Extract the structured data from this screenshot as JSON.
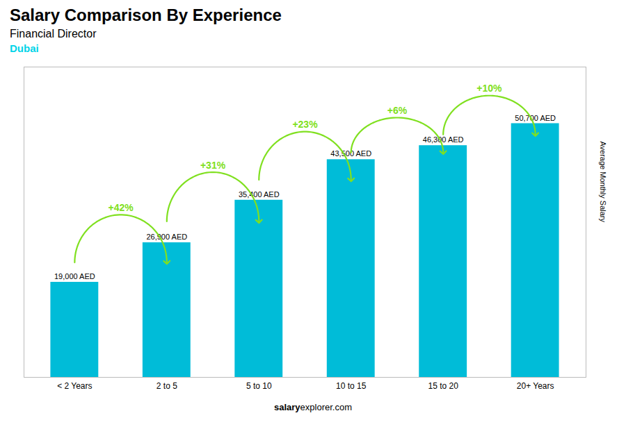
{
  "chart_data": {
    "type": "bar",
    "title": "Salary Comparison By Experience",
    "subtitle": "Financial Director",
    "ylabel": "Average Monthly Salary",
    "categories": [
      "< 2 Years",
      "2 to 5",
      "5 to 10",
      "10 to 15",
      "15 to 20",
      "20+ Years"
    ],
    "values": [
      19000,
      26900,
      35400,
      43500,
      46300,
      50700
    ],
    "value_labels": [
      "19,000 AED",
      "26,900 AED",
      "35,400 AED",
      "43,500 AED",
      "46,300 AED",
      "50,700 AED"
    ],
    "data_labels": true,
    "color": "#00bcd8",
    "ylim": [
      0,
      62000
    ],
    "grid": false,
    "tick_labels": "x",
    "annotations": [
      {
        "text": "Dubai",
        "color": "#00d4e8"
      },
      {
        "text": "+42%",
        "type": "arrow",
        "color": "#80e020"
      },
      {
        "text": "+31%",
        "type": "arrow",
        "color": "#80e020"
      },
      {
        "text": "+23%",
        "type": "arrow",
        "color": "#80e020"
      },
      {
        "text": "+6%",
        "type": "arrow",
        "color": "#80e020"
      },
      {
        "text": "+10%",
        "type": "arrow",
        "color": "#80e020"
      },
      {
        "text": "salary"
      },
      {
        "text": "explorer.com"
      }
    ]
  }
}
